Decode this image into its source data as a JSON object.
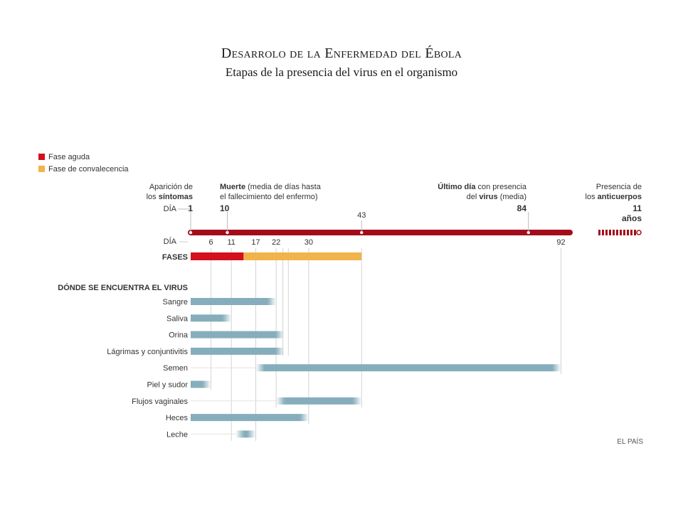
{
  "title": "Desarrolo de la Enfermedad del Ébola",
  "subtitle": "Etapas de la presencia del virus en el organismo",
  "chart_data": {
    "type": "bar",
    "legend": [
      {
        "label": "Fase aguda",
        "color": "#d2101e"
      },
      {
        "label": "Fase de convalecencia",
        "color": "#f2b24c"
      }
    ],
    "timeline": {
      "day_label": "DÍA",
      "start_day": 1,
      "end_day": 92,
      "events": [
        {
          "day": 1,
          "lines": [
            "Aparición de",
            "los síntomas"
          ],
          "day_label": "DÍA",
          "value": "1"
        },
        {
          "day": 10,
          "lines": [
            "Muerte (media de días hasta",
            "el fallecimiento del enfermo)"
          ],
          "value": "10"
        },
        {
          "day": 43,
          "value": "43"
        },
        {
          "day": 84,
          "lines": [
            "Último día con presencia",
            "del virus (media)"
          ],
          "value": "84"
        }
      ],
      "antibodies": {
        "lines": [
          "Presencia de",
          "los anticuerpos"
        ],
        "value": "11",
        "unit": "años"
      }
    },
    "ticks": [
      "6",
      "11",
      "17",
      "22",
      "30",
      "92"
    ],
    "phases_label": "FASES",
    "phases": [
      {
        "name": "Fase aguda",
        "start": 1,
        "end": 14
      },
      {
        "name": "Fase de convalecencia",
        "start": 14,
        "end": 43
      }
    ],
    "section_label": "DÓNDE SE ENCUENTRA EL VIRUS",
    "series": [
      {
        "name": "Sangre",
        "start": 1,
        "end": 22
      },
      {
        "name": "Saliva",
        "start": 1,
        "end": 11
      },
      {
        "name": "Orina",
        "start": 1,
        "end": 24
      },
      {
        "name": "Lágrimas y conjuntivitis",
        "start": 1,
        "end": 24
      },
      {
        "name": "Semen",
        "start": 17,
        "end": 92
      },
      {
        "name": "Piel y sudor",
        "start": 1,
        "end": 6
      },
      {
        "name": "Flujos vaginales",
        "start": 22,
        "end": 43
      },
      {
        "name": "Heces",
        "start": 1,
        "end": 30
      },
      {
        "name": "Leche",
        "start": 12,
        "end": 17
      }
    ],
    "source": "EL PAÍS",
    "colors": {
      "timeline": "#a30d1b",
      "bars": "#86adbb",
      "grid": "#d4d4d4"
    }
  }
}
